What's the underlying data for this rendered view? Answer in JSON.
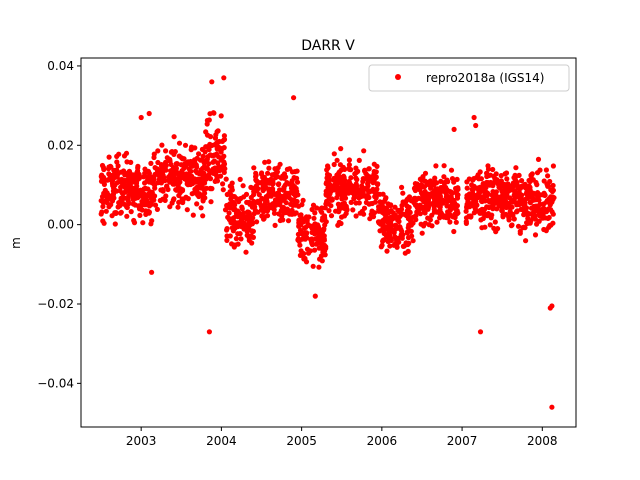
{
  "chart_data": {
    "type": "scatter",
    "title": "DARR V",
    "xlabel": "",
    "ylabel": "m",
    "xlim": [
      2002.25,
      2008.42
    ],
    "ylim": [
      -0.051,
      0.042
    ],
    "x_ticks": [
      2003,
      2004,
      2005,
      2006,
      2007,
      2008
    ],
    "y_ticks": [
      0.04,
      0.02,
      0.0,
      -0.02,
      -0.04
    ],
    "y_tick_labels": [
      "0.04",
      "0.02",
      "0.00",
      "−0.02",
      "−0.04"
    ],
    "grid": false,
    "legend_position": "top-right",
    "series": [
      {
        "name": "repro2018a (IGS14)",
        "color": "#ff0000",
        "marker": "circle",
        "clusters": [
          {
            "x_range": [
              2002.5,
              2003.18
            ],
            "center": 0.009,
            "spread": 0.0055
          },
          {
            "x_range": [
              2003.2,
              2003.8
            ],
            "center": 0.012,
            "spread": 0.0055
          },
          {
            "x_range": [
              2003.8,
              2004.05
            ],
            "center": 0.016,
            "spread": 0.007
          },
          {
            "x_range": [
              2004.05,
              2004.4
            ],
            "center": 0.002,
            "spread": 0.0055
          },
          {
            "x_range": [
              2004.4,
              2004.95
            ],
            "center": 0.008,
            "spread": 0.005
          },
          {
            "x_range": [
              2004.95,
              2005.3
            ],
            "center": -0.002,
            "spread": 0.006
          },
          {
            "x_range": [
              2005.3,
              2005.95
            ],
            "center": 0.009,
            "spread": 0.005
          },
          {
            "x_range": [
              2005.95,
              2006.4
            ],
            "center": 0.001,
            "spread": 0.005
          },
          {
            "x_range": [
              2006.4,
              2006.95
            ],
            "center": 0.006,
            "spread": 0.0045
          },
          {
            "x_range": [
              2007.05,
              2007.6
            ],
            "center": 0.007,
            "spread": 0.005
          },
          {
            "x_range": [
              2007.6,
              2008.15
            ],
            "center": 0.006,
            "spread": 0.0055
          }
        ],
        "outliers": [
          [
            2003.85,
            -0.027
          ],
          [
            2007.23,
            -0.027
          ],
          [
            2008.1,
            -0.021
          ],
          [
            2008.12,
            -0.0205
          ],
          [
            2008.12,
            -0.046
          ],
          [
            2005.17,
            -0.018
          ],
          [
            2004.9,
            0.032
          ],
          [
            2004.03,
            0.037
          ],
          [
            2003.88,
            0.036
          ],
          [
            2007.15,
            0.027
          ],
          [
            2007.17,
            0.025
          ],
          [
            2006.9,
            0.024
          ],
          [
            2003.1,
            0.028
          ],
          [
            2003.0,
            0.027
          ],
          [
            2003.13,
            -0.012
          ]
        ]
      }
    ]
  }
}
